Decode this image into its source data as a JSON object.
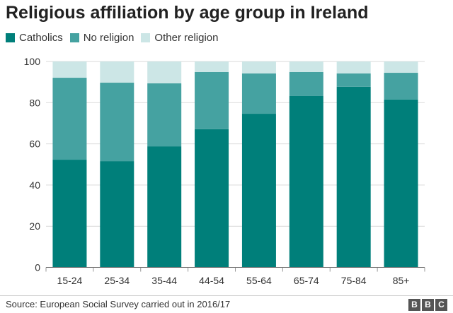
{
  "chart_data": {
    "type": "bar",
    "stacked": true,
    "title": "Religious affiliation by age group in Ireland",
    "categories": [
      "15-24",
      "25-34",
      "35-44",
      "44-54",
      "55-64",
      "65-74",
      "75-84",
      "85+"
    ],
    "series": [
      {
        "name": "Catholics",
        "color": "#007f7a",
        "values": [
          52.3,
          51.6,
          58.8,
          67.1,
          74.6,
          83.2,
          87.7,
          81.5
        ]
      },
      {
        "name": "No religion",
        "color": "#45a2a1",
        "values": [
          39.8,
          38.1,
          30.6,
          27.8,
          19.6,
          11.7,
          6.5,
          13.0
        ]
      },
      {
        "name": "Other religion",
        "color": "#cce6e6",
        "values": [
          7.9,
          10.3,
          10.6,
          5.1,
          5.8,
          5.1,
          5.8,
          5.5
        ]
      }
    ],
    "yticks": [
      0,
      20,
      40,
      60,
      80,
      100
    ],
    "ylim": [
      0,
      100
    ],
    "grid": true,
    "legend": "top-left",
    "xlabel": "",
    "ylabel": ""
  },
  "source": "Source: European Social Survey carried out in 2016/17",
  "logo": [
    "B",
    "B",
    "C"
  ]
}
